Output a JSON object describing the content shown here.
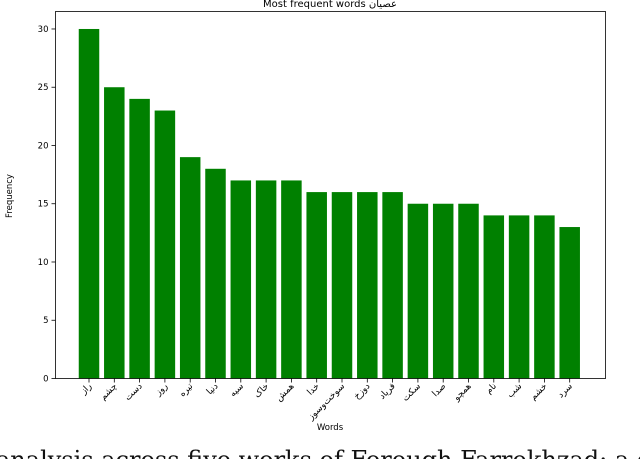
{
  "chart_data": {
    "type": "bar",
    "title": "Most frequent words عصیان",
    "xlabel": "Words",
    "ylabel": "Frequency",
    "categories": [
      "راز",
      "چشم",
      "دست",
      "روز",
      "تیره",
      "دنیا",
      "سیه",
      "خاک",
      "همش",
      "خدا",
      "سوخت‌وسوز",
      "دوزخ",
      "فریاد",
      "سکت",
      "صدا",
      "همچو",
      "نام",
      "شب",
      "خشم",
      "سرد"
    ],
    "values": [
      30,
      25,
      24,
      23,
      19,
      18,
      17,
      17,
      17,
      16,
      16,
      16,
      16,
      15,
      15,
      15,
      14,
      14,
      14,
      13
    ],
    "ylim": [
      0,
      31.5
    ],
    "yticks": [
      0,
      5,
      10,
      15,
      20,
      25,
      30
    ],
    "bar_color": "#008000",
    "grid": false,
    "legend": "none"
  },
  "caption": "analysis across five works of Forough Farrokhzad: a comparati"
}
